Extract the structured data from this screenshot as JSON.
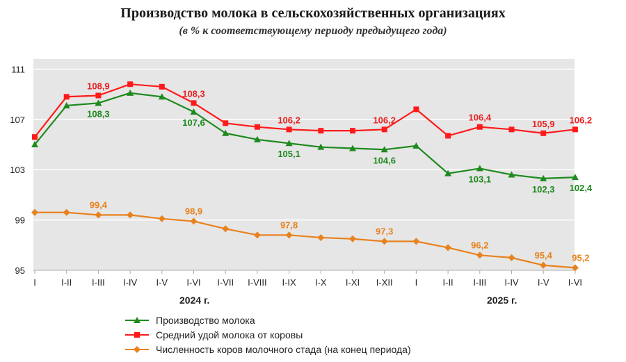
{
  "title": "Производство молока в сельскохозяйственных организациях",
  "subtitle": "(в % к соответствующему периоду предыдущего года)",
  "year_labels": [
    "2024 г.",
    "2025 г."
  ],
  "chart_data": {
    "type": "line",
    "title": "Производство молока в сельскохозяйственных организациях",
    "subtitle": "(в % к соответствующему периоду предыдущего года)",
    "categories": [
      "I",
      "I-II",
      "I-III",
      "I-IV",
      "I-V",
      "I-VI",
      "I-VII",
      "I-VIII",
      "I-IX",
      "I-X",
      "I-XI",
      "I-XII",
      "I",
      "I-II",
      "I-III",
      "I-IV",
      "I-V",
      "I-VI"
    ],
    "y_ticks": [
      95,
      99,
      103,
      107,
      111
    ],
    "ylim": [
      95,
      111.8
    ],
    "grid": "horizontal",
    "legend_position": "bottom",
    "colors": {
      "production": "#1e8a1e",
      "yield": "#ff1a1a",
      "cows": "#e8821e",
      "plot_bg": "#e6e6e6",
      "label_green": "#1e8a1e",
      "label_red": "#e82020",
      "label_orange": "#e8821e"
    },
    "series": [
      {
        "name": "Производство молока",
        "marker": "triangle",
        "values": [
          105.0,
          108.1,
          108.3,
          109.1,
          108.8,
          107.6,
          105.9,
          105.4,
          105.1,
          104.8,
          104.7,
          104.6,
          104.9,
          102.7,
          103.1,
          102.6,
          102.3,
          102.4
        ],
        "labels": {
          "2": "108,3",
          "5": "107,6",
          "8": "105,1",
          "11": "104,6",
          "14": "103,1",
          "16": "102,3",
          "17": "102,4"
        }
      },
      {
        "name": "Средний удой молока от коровы",
        "marker": "square",
        "values": [
          105.6,
          108.8,
          108.9,
          109.8,
          109.6,
          108.3,
          106.7,
          106.4,
          106.2,
          106.1,
          106.1,
          106.2,
          107.8,
          105.7,
          106.4,
          106.2,
          105.9,
          106.2
        ],
        "labels": {
          "2": "108,9",
          "5": "108,3",
          "8": "106,2",
          "11": "106,2",
          "14": "106,4",
          "16": "105,9",
          "17": "106,2"
        }
      },
      {
        "name": "Численность коров молочного стада (на конец периода)",
        "marker": "diamond",
        "values": [
          99.6,
          99.6,
          99.4,
          99.4,
          99.1,
          98.9,
          98.3,
          97.8,
          97.8,
          97.6,
          97.5,
          97.3,
          97.3,
          96.8,
          96.2,
          96.0,
          95.4,
          95.2
        ],
        "labels": {
          "2": "99,4",
          "5": "98,9",
          "8": "97,8",
          "11": "97,3",
          "14": "96,2",
          "16": "95,4",
          "17": "95,2"
        }
      }
    ]
  }
}
